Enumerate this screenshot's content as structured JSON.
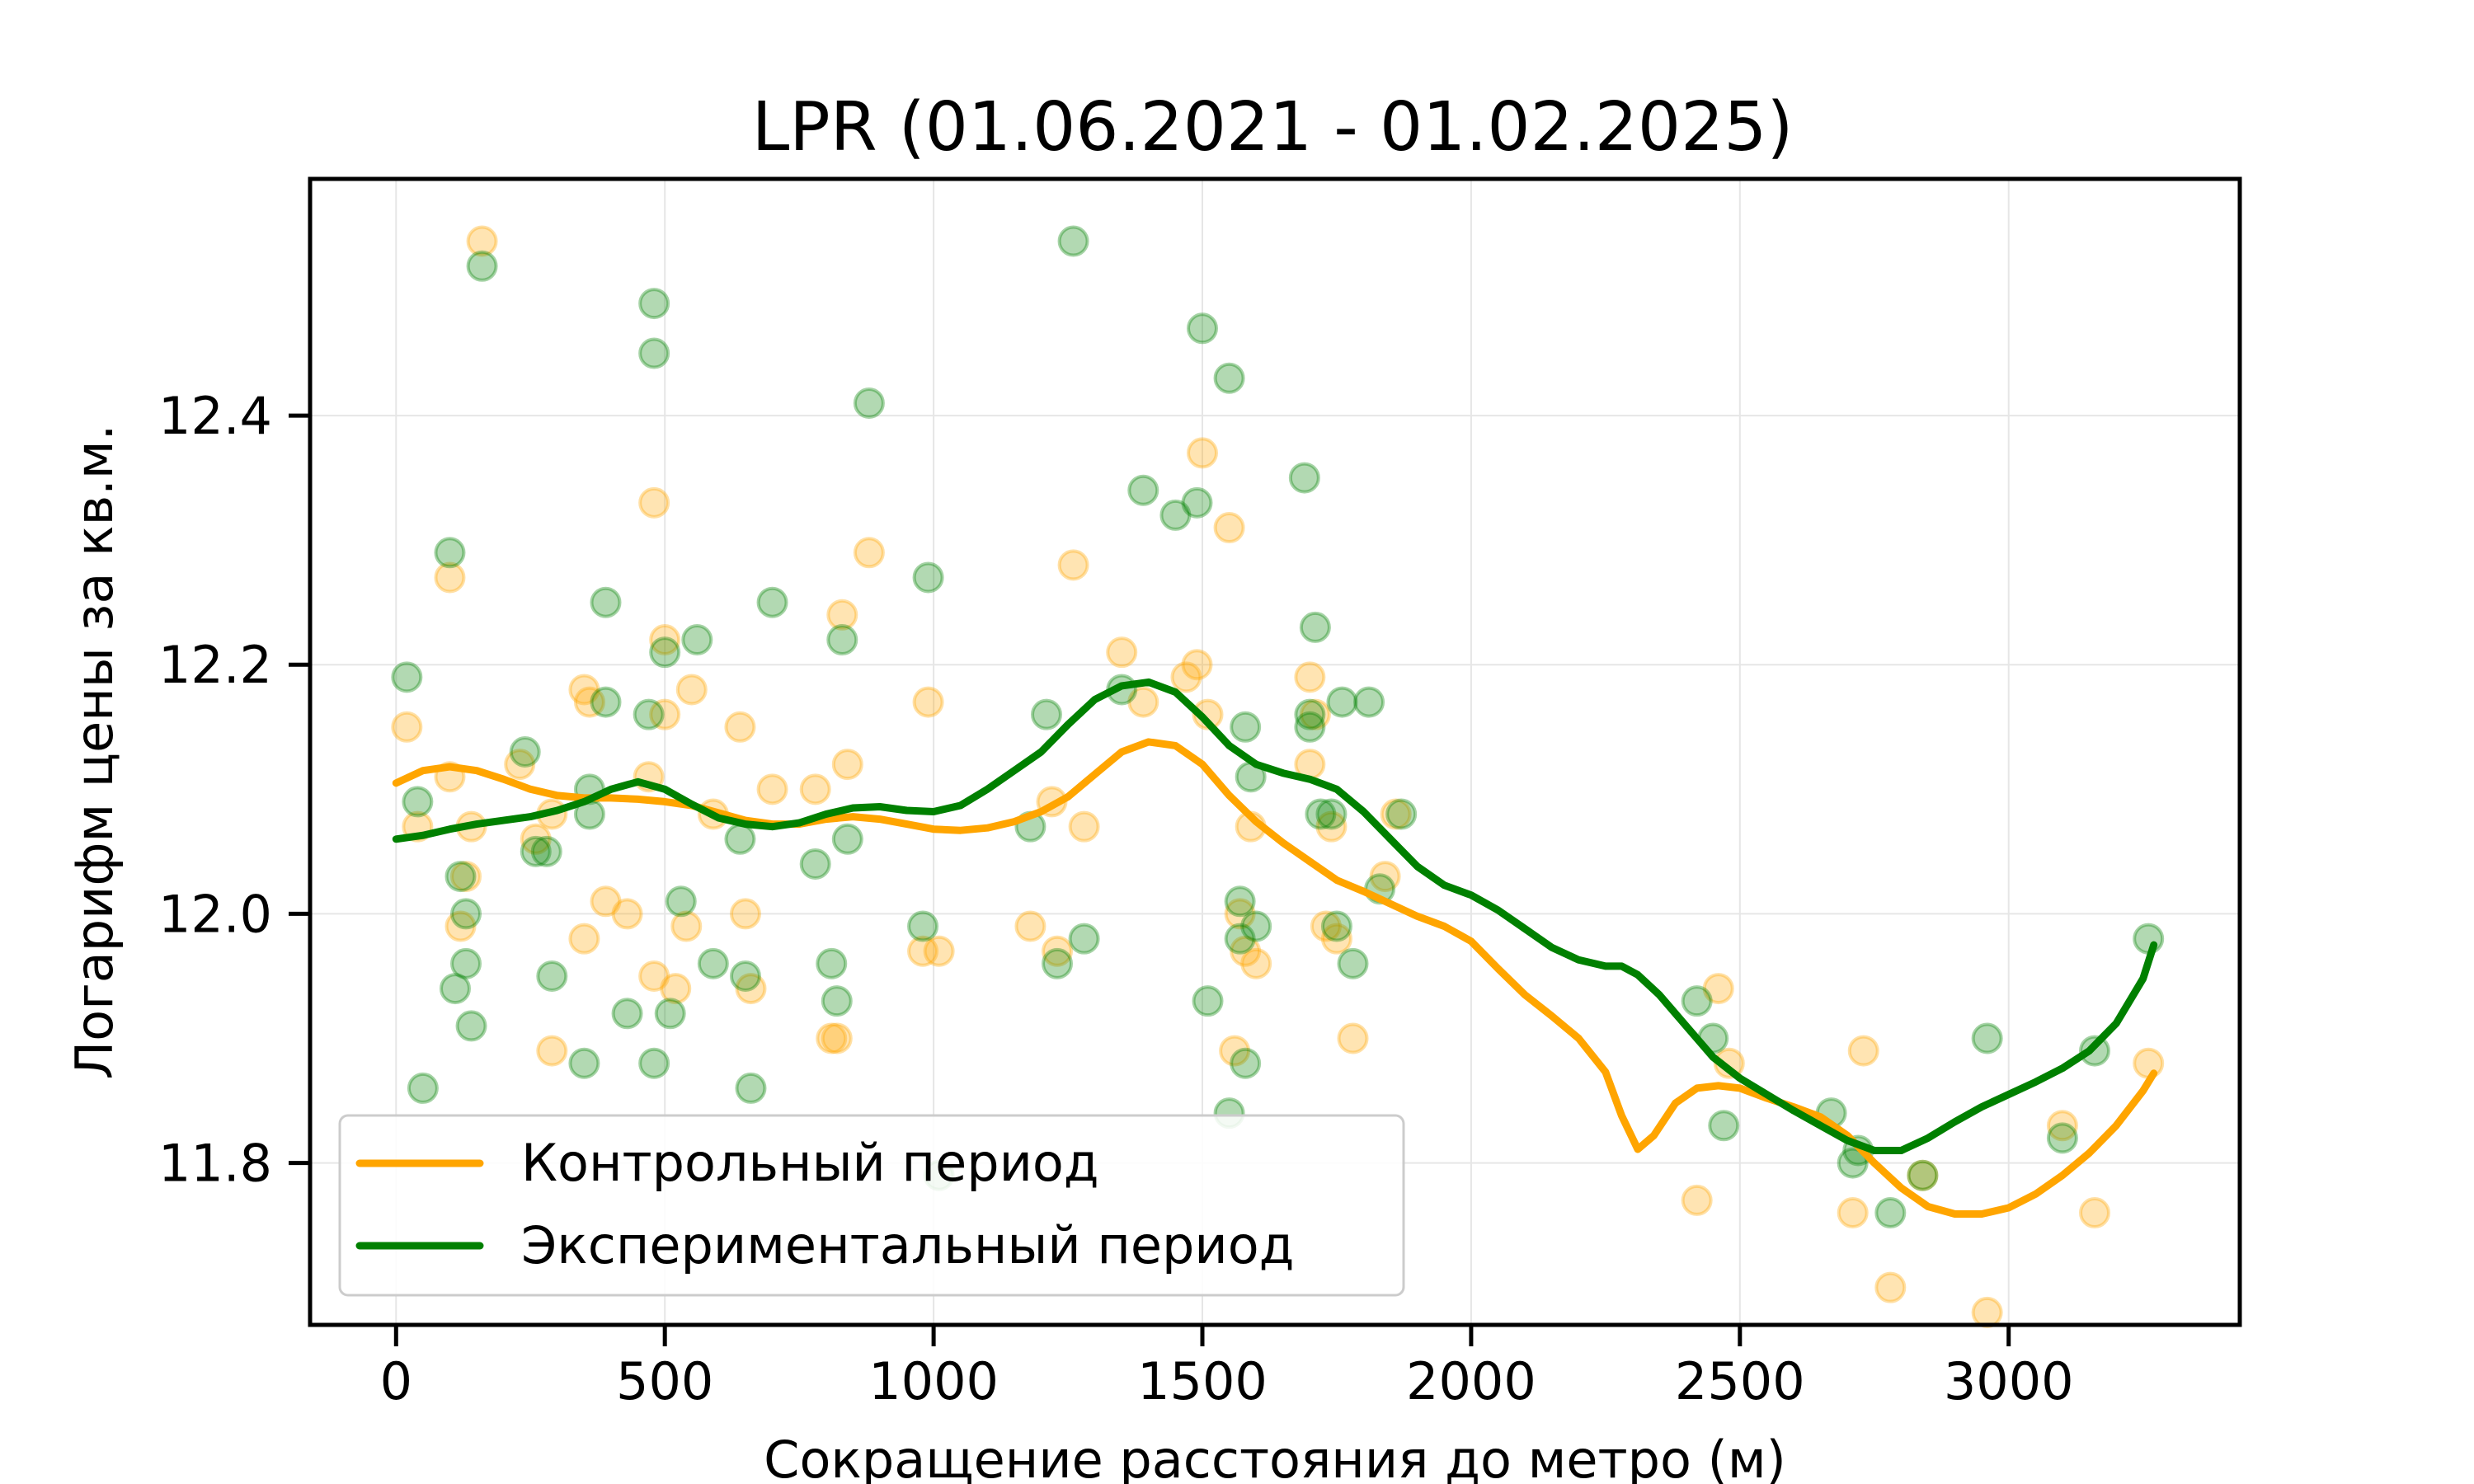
{
  "chart_data": {
    "type": "scatter",
    "title": "LPR (01.06.2021 - 01.02.2025)",
    "xlabel": "Сокращение расстояния до метро (м)",
    "ylabel": "Логарифм цены за кв.м.",
    "xlim": [
      -160,
      3430
    ],
    "ylim": [
      11.67,
      12.59
    ],
    "xticks": [
      0,
      500,
      1000,
      1500,
      2000,
      2500,
      3000
    ],
    "yticks": [
      11.8,
      12.0,
      12.2,
      12.4
    ],
    "xtick_labels": [
      "0",
      "500",
      "1000",
      "1500",
      "2000",
      "2500",
      "3000"
    ],
    "ytick_labels": [
      "11.8",
      "12.0",
      "12.2",
      "12.4"
    ],
    "grid": true,
    "legend_position": "lower-left",
    "series": [
      {
        "name": "Контрольный период",
        "color": "#FFA500",
        "points": [
          [
            20,
            12.15
          ],
          [
            40,
            12.07
          ],
          [
            100,
            12.27
          ],
          [
            100,
            12.11
          ],
          [
            120,
            11.99
          ],
          [
            130,
            12.03
          ],
          [
            140,
            12.07
          ],
          [
            160,
            12.54
          ],
          [
            230,
            12.12
          ],
          [
            260,
            12.06
          ],
          [
            290,
            11.89
          ],
          [
            290,
            12.08
          ],
          [
            350,
            11.98
          ],
          [
            350,
            12.18
          ],
          [
            360,
            12.17
          ],
          [
            390,
            12.01
          ],
          [
            430,
            12.0
          ],
          [
            470,
            12.11
          ],
          [
            480,
            12.33
          ],
          [
            480,
            11.95
          ],
          [
            500,
            12.22
          ],
          [
            500,
            12.16
          ],
          [
            520,
            11.94
          ],
          [
            540,
            11.99
          ],
          [
            550,
            12.18
          ],
          [
            590,
            12.08
          ],
          [
            640,
            12.15
          ],
          [
            650,
            12.0
          ],
          [
            660,
            11.94
          ],
          [
            700,
            12.1
          ],
          [
            780,
            12.1
          ],
          [
            810,
            11.9
          ],
          [
            820,
            11.9
          ],
          [
            830,
            12.24
          ],
          [
            840,
            12.12
          ],
          [
            880,
            12.29
          ],
          [
            980,
            11.97
          ],
          [
            990,
            12.17
          ],
          [
            1010,
            11.97
          ],
          [
            1180,
            11.99
          ],
          [
            1220,
            12.09
          ],
          [
            1230,
            11.97
          ],
          [
            1260,
            12.28
          ],
          [
            1280,
            12.07
          ],
          [
            1350,
            12.21
          ],
          [
            1390,
            12.17
          ],
          [
            1470,
            12.19
          ],
          [
            1490,
            12.2
          ],
          [
            1500,
            12.37
          ],
          [
            1510,
            12.16
          ],
          [
            1550,
            12.31
          ],
          [
            1560,
            11.89
          ],
          [
            1570,
            12.0
          ],
          [
            1580,
            11.97
          ],
          [
            1590,
            12.07
          ],
          [
            1600,
            11.96
          ],
          [
            1700,
            12.19
          ],
          [
            1700,
            12.12
          ],
          [
            1710,
            12.16
          ],
          [
            1730,
            11.99
          ],
          [
            1740,
            12.07
          ],
          [
            1750,
            11.98
          ],
          [
            1780,
            11.9
          ],
          [
            1840,
            12.03
          ],
          [
            1860,
            12.08
          ],
          [
            2420,
            11.77
          ],
          [
            2460,
            11.94
          ],
          [
            2480,
            11.88
          ],
          [
            2710,
            11.76
          ],
          [
            2730,
            11.89
          ],
          [
            2780,
            11.7
          ],
          [
            2840,
            11.79
          ],
          [
            2960,
            11.68
          ],
          [
            3100,
            11.83
          ],
          [
            3160,
            11.76
          ],
          [
            3260,
            11.88
          ]
        ],
        "curve": [
          [
            0,
            12.105
          ],
          [
            50,
            12.115
          ],
          [
            100,
            12.118
          ],
          [
            150,
            12.115
          ],
          [
            200,
            12.108
          ],
          [
            250,
            12.1
          ],
          [
            300,
            12.095
          ],
          [
            350,
            12.093
          ],
          [
            400,
            12.093
          ],
          [
            450,
            12.092
          ],
          [
            500,
            12.09
          ],
          [
            550,
            12.087
          ],
          [
            600,
            12.081
          ],
          [
            650,
            12.075
          ],
          [
            700,
            12.072
          ],
          [
            750,
            12.072
          ],
          [
            800,
            12.076
          ],
          [
            850,
            12.078
          ],
          [
            900,
            12.076
          ],
          [
            950,
            12.072
          ],
          [
            1000,
            12.068
          ],
          [
            1050,
            12.067
          ],
          [
            1100,
            12.069
          ],
          [
            1150,
            12.074
          ],
          [
            1200,
            12.082
          ],
          [
            1250,
            12.094
          ],
          [
            1300,
            12.112
          ],
          [
            1350,
            12.13
          ],
          [
            1400,
            12.138
          ],
          [
            1450,
            12.135
          ],
          [
            1500,
            12.12
          ],
          [
            1550,
            12.095
          ],
          [
            1600,
            12.074
          ],
          [
            1650,
            12.057
          ],
          [
            1700,
            12.042
          ],
          [
            1750,
            12.027
          ],
          [
            1800,
            12.018
          ],
          [
            1850,
            12.008
          ],
          [
            1900,
            11.998
          ],
          [
            1950,
            11.99
          ],
          [
            2000,
            11.978
          ],
          [
            2050,
            11.956
          ],
          [
            2100,
            11.935
          ],
          [
            2150,
            11.918
          ],
          [
            2200,
            11.9
          ],
          [
            2250,
            11.873
          ],
          [
            2280,
            11.838
          ],
          [
            2310,
            11.811
          ],
          [
            2340,
            11.822
          ],
          [
            2380,
            11.848
          ],
          [
            2420,
            11.86
          ],
          [
            2460,
            11.862
          ],
          [
            2500,
            11.86
          ],
          [
            2550,
            11.852
          ],
          [
            2600,
            11.845
          ],
          [
            2650,
            11.837
          ],
          [
            2700,
            11.822
          ],
          [
            2750,
            11.8
          ],
          [
            2800,
            11.78
          ],
          [
            2850,
            11.765
          ],
          [
            2900,
            11.759
          ],
          [
            2950,
            11.759
          ],
          [
            3000,
            11.764
          ],
          [
            3050,
            11.775
          ],
          [
            3100,
            11.79
          ],
          [
            3150,
            11.808
          ],
          [
            3200,
            11.83
          ],
          [
            3250,
            11.858
          ],
          [
            3270,
            11.872
          ]
        ]
      },
      {
        "name": "Экспериментальный период",
        "color": "#008000",
        "points": [
          [
            20,
            12.19
          ],
          [
            40,
            12.09
          ],
          [
            50,
            11.86
          ],
          [
            100,
            12.29
          ],
          [
            110,
            11.94
          ],
          [
            120,
            12.03
          ],
          [
            130,
            11.96
          ],
          [
            130,
            12.0
          ],
          [
            140,
            11.91
          ],
          [
            160,
            12.52
          ],
          [
            240,
            12.13
          ],
          [
            260,
            12.05
          ],
          [
            280,
            12.05
          ],
          [
            290,
            11.95
          ],
          [
            350,
            11.88
          ],
          [
            360,
            12.08
          ],
          [
            360,
            12.1
          ],
          [
            390,
            12.17
          ],
          [
            390,
            12.25
          ],
          [
            430,
            11.92
          ],
          [
            470,
            12.16
          ],
          [
            480,
            12.45
          ],
          [
            480,
            12.49
          ],
          [
            480,
            11.88
          ],
          [
            500,
            12.21
          ],
          [
            510,
            11.92
          ],
          [
            530,
            12.01
          ],
          [
            560,
            12.22
          ],
          [
            590,
            11.96
          ],
          [
            640,
            12.06
          ],
          [
            650,
            11.95
          ],
          [
            660,
            11.86
          ],
          [
            700,
            12.25
          ],
          [
            780,
            12.04
          ],
          [
            810,
            11.96
          ],
          [
            820,
            11.93
          ],
          [
            830,
            12.22
          ],
          [
            840,
            12.06
          ],
          [
            880,
            12.41
          ],
          [
            980,
            11.99
          ],
          [
            990,
            12.27
          ],
          [
            1010,
            11.79
          ],
          [
            1180,
            12.07
          ],
          [
            1210,
            12.16
          ],
          [
            1230,
            11.96
          ],
          [
            1260,
            12.54
          ],
          [
            1280,
            11.98
          ],
          [
            1350,
            12.18
          ],
          [
            1390,
            12.34
          ],
          [
            1450,
            12.32
          ],
          [
            1490,
            12.33
          ],
          [
            1500,
            12.47
          ],
          [
            1510,
            11.93
          ],
          [
            1550,
            12.43
          ],
          [
            1550,
            11.84
          ],
          [
            1570,
            12.01
          ],
          [
            1570,
            11.98
          ],
          [
            1580,
            11.88
          ],
          [
            1580,
            12.15
          ],
          [
            1590,
            12.11
          ],
          [
            1600,
            11.99
          ],
          [
            1690,
            12.35
          ],
          [
            1700,
            12.15
          ],
          [
            1700,
            12.16
          ],
          [
            1710,
            12.23
          ],
          [
            1720,
            12.08
          ],
          [
            1740,
            12.08
          ],
          [
            1750,
            11.99
          ],
          [
            1760,
            12.17
          ],
          [
            1780,
            11.96
          ],
          [
            1810,
            12.17
          ],
          [
            1830,
            12.02
          ],
          [
            1870,
            12.08
          ],
          [
            2420,
            11.93
          ],
          [
            2450,
            11.9
          ],
          [
            2470,
            11.83
          ],
          [
            2670,
            11.84
          ],
          [
            2710,
            11.8
          ],
          [
            2720,
            11.81
          ],
          [
            2780,
            11.76
          ],
          [
            2840,
            11.79
          ],
          [
            2960,
            11.9
          ],
          [
            3100,
            11.82
          ],
          [
            3160,
            11.89
          ],
          [
            3260,
            11.98
          ]
        ],
        "curve": [
          [
            0,
            12.06
          ],
          [
            50,
            12.063
          ],
          [
            100,
            12.068
          ],
          [
            150,
            12.072
          ],
          [
            200,
            12.075
          ],
          [
            250,
            12.078
          ],
          [
            300,
            12.083
          ],
          [
            350,
            12.09
          ],
          [
            400,
            12.1
          ],
          [
            450,
            12.106
          ],
          [
            500,
            12.1
          ],
          [
            550,
            12.088
          ],
          [
            600,
            12.077
          ],
          [
            650,
            12.072
          ],
          [
            700,
            12.07
          ],
          [
            750,
            12.073
          ],
          [
            800,
            12.08
          ],
          [
            850,
            12.085
          ],
          [
            900,
            12.086
          ],
          [
            950,
            12.083
          ],
          [
            1000,
            12.082
          ],
          [
            1050,
            12.087
          ],
          [
            1100,
            12.1
          ],
          [
            1150,
            12.115
          ],
          [
            1200,
            12.13
          ],
          [
            1250,
            12.152
          ],
          [
            1300,
            12.172
          ],
          [
            1350,
            12.183
          ],
          [
            1400,
            12.186
          ],
          [
            1450,
            12.178
          ],
          [
            1500,
            12.158
          ],
          [
            1550,
            12.135
          ],
          [
            1600,
            12.12
          ],
          [
            1650,
            12.113
          ],
          [
            1700,
            12.108
          ],
          [
            1750,
            12.1
          ],
          [
            1800,
            12.082
          ],
          [
            1850,
            12.06
          ],
          [
            1900,
            12.038
          ],
          [
            1950,
            12.023
          ],
          [
            2000,
            12.015
          ],
          [
            2050,
            12.003
          ],
          [
            2100,
            11.988
          ],
          [
            2150,
            11.973
          ],
          [
            2200,
            11.963
          ],
          [
            2250,
            11.958
          ],
          [
            2280,
            11.958
          ],
          [
            2310,
            11.951
          ],
          [
            2350,
            11.935
          ],
          [
            2400,
            11.91
          ],
          [
            2450,
            11.885
          ],
          [
            2500,
            11.868
          ],
          [
            2550,
            11.855
          ],
          [
            2600,
            11.842
          ],
          [
            2650,
            11.83
          ],
          [
            2700,
            11.818
          ],
          [
            2750,
            11.81
          ],
          [
            2800,
            11.81
          ],
          [
            2850,
            11.82
          ],
          [
            2900,
            11.833
          ],
          [
            2950,
            11.845
          ],
          [
            3000,
            11.855
          ],
          [
            3050,
            11.865
          ],
          [
            3100,
            11.876
          ],
          [
            3150,
            11.89
          ],
          [
            3200,
            11.912
          ],
          [
            3250,
            11.948
          ],
          [
            3270,
            11.975
          ]
        ]
      }
    ]
  }
}
